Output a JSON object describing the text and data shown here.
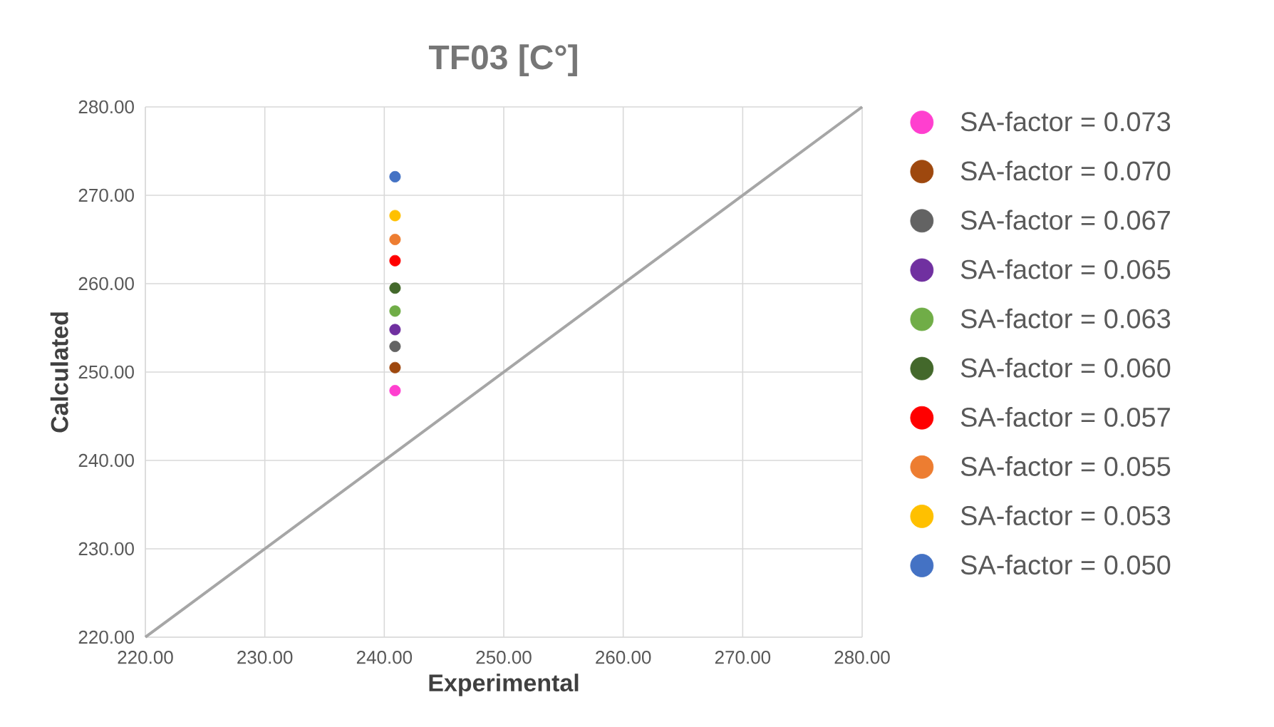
{
  "chart_data": {
    "type": "scatter",
    "title": "TF03 [C°]",
    "xlabel": "Experimental",
    "ylabel": "Calculated",
    "xlim": [
      220,
      280
    ],
    "ylim": [
      220,
      280
    ],
    "xticks": [
      {
        "value": 220,
        "label": "220.00"
      },
      {
        "value": 230,
        "label": "230.00"
      },
      {
        "value": 240,
        "label": "240.00"
      },
      {
        "value": 250,
        "label": "250.00"
      },
      {
        "value": 260,
        "label": "260.00"
      },
      {
        "value": 270,
        "label": "270.00"
      },
      {
        "value": 280,
        "label": "280.00"
      }
    ],
    "yticks": [
      {
        "value": 220,
        "label": "220.00"
      },
      {
        "value": 230,
        "label": "230.00"
      },
      {
        "value": 240,
        "label": "240.00"
      },
      {
        "value": 250,
        "label": "250.00"
      },
      {
        "value": 260,
        "label": "260.00"
      },
      {
        "value": 270,
        "label": "270.00"
      },
      {
        "value": 280,
        "label": "280.00"
      }
    ],
    "grid": true,
    "legend": "right",
    "series": [
      {
        "type": "line",
        "color": "#a6a6a6",
        "x": [
          220,
          280
        ],
        "values": [
          220,
          280
        ],
        "marker": "none"
      },
      {
        "name": "SA-factor = 0.073",
        "color": "#ff3fcf",
        "x": [
          240.9
        ],
        "values": [
          247.9
        ],
        "marker": "circle"
      },
      {
        "name": "SA-factor = 0.070",
        "color": "#9e480e",
        "x": [
          240.9
        ],
        "values": [
          250.5
        ],
        "marker": "circle"
      },
      {
        "name": "SA-factor = 0.067",
        "color": "#636363",
        "x": [
          240.9
        ],
        "values": [
          252.9
        ],
        "marker": "circle"
      },
      {
        "name": "SA-factor = 0.065",
        "color": "#7030a0",
        "x": [
          240.9
        ],
        "values": [
          254.8
        ],
        "marker": "circle"
      },
      {
        "name": "SA-factor = 0.063",
        "color": "#70ad47",
        "x": [
          240.9
        ],
        "values": [
          256.9
        ],
        "marker": "circle"
      },
      {
        "name": "SA-factor = 0.060",
        "color": "#43682b",
        "x": [
          240.9
        ],
        "values": [
          259.5
        ],
        "marker": "circle"
      },
      {
        "name": "SA-factor = 0.057",
        "color": "#ff0000",
        "x": [
          240.9
        ],
        "values": [
          262.6
        ],
        "marker": "circle"
      },
      {
        "name": "SA-factor = 0.055",
        "color": "#ed7d31",
        "x": [
          240.9
        ],
        "values": [
          265.0
        ],
        "marker": "circle"
      },
      {
        "name": "SA-factor = 0.053",
        "color": "#ffc000",
        "x": [
          240.9
        ],
        "values": [
          267.7
        ],
        "marker": "circle"
      },
      {
        "name": "SA-factor = 0.050",
        "color": "#4472c4",
        "x": [
          240.9
        ],
        "values": [
          272.1
        ],
        "marker": "circle"
      }
    ]
  }
}
